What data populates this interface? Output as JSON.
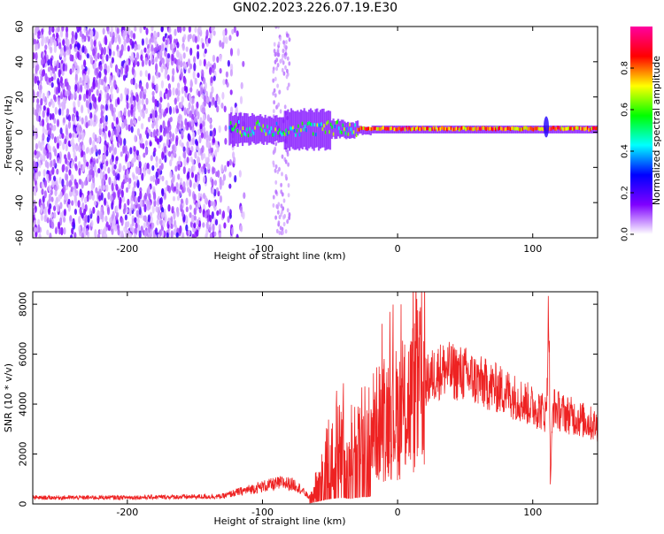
{
  "figure": {
    "title": "GN02.2023.226.07.19.E30"
  },
  "chart_data": [
    {
      "type": "heatmap",
      "title": "GN02.2023.226.07.19.E30",
      "xlabel": "Height of straight line (km)",
      "ylabel": "Frequency (Hz)",
      "xlim": [
        -270,
        148
      ],
      "ylim": [
        -60,
        60
      ],
      "x_ticks": [
        -200,
        -100,
        0,
        100
      ],
      "y_ticks": [
        -60,
        -40,
        -20,
        0,
        20,
        40,
        60
      ],
      "colorbar": {
        "label": "Normalized spectral amplitude",
        "range": [
          0.0,
          1.0
        ],
        "ticks": [
          0.0,
          0.2,
          0.4,
          0.6,
          0.8
        ],
        "colormap": [
          "#ffffff",
          "#7f00ff",
          "#0000ff",
          "#00ffff",
          "#00ff00",
          "#ffff00",
          "#ff0000",
          "#ff00a0"
        ]
      },
      "features": [
        {
          "name": "noise",
          "x_range": [
            -270,
            -125
          ],
          "freq_range": [
            -60,
            60
          ],
          "amplitude": 0.2
        },
        {
          "name": "signal_band",
          "x_range": [
            -125,
            148
          ],
          "center_freq_hz": 1.5,
          "amplitude": 0.95
        },
        {
          "name": "sparse_column",
          "x_range": [
            -92,
            -80
          ],
          "freq_range": [
            -60,
            60
          ],
          "amplitude": 0.1
        }
      ],
      "grid": false
    },
    {
      "type": "line",
      "xlabel": "Height of straight line (km)",
      "ylabel": "SNR (10 * v/v)",
      "xlim": [
        -270,
        148
      ],
      "ylim": [
        0,
        8500
      ],
      "x_ticks": [
        -200,
        -100,
        0,
        100
      ],
      "y_ticks": [
        0,
        2000,
        4000,
        6000,
        8000
      ],
      "color": "#ee2222",
      "series": [
        {
          "x": [
            -270,
            -200,
            -130,
            -120,
            -100,
            -85,
            -75,
            -65,
            -60,
            -55,
            -50,
            -45,
            -40,
            -35,
            -30,
            -25,
            -20,
            -15,
            -10,
            -5,
            0,
            5,
            10,
            15,
            20,
            25,
            30,
            35,
            40,
            50,
            60,
            70,
            80,
            90,
            100,
            105,
            110,
            112,
            113,
            115,
            120,
            130,
            140,
            148
          ],
          "y": [
            250,
            260,
            300,
            450,
            700,
            850,
            750,
            250,
            800,
            1500,
            2100,
            2300,
            2400,
            2200,
            2500,
            2800,
            3000,
            3200,
            3400,
            3700,
            3600,
            3800,
            4200,
            4500,
            4800,
            5100,
            5300,
            5400,
            5300,
            5200,
            4900,
            4700,
            4500,
            4200,
            3900,
            3800,
            3600,
            8300,
            800,
            3900,
            3700,
            3500,
            3300,
            3100
          ]
        }
      ],
      "grid": false
    }
  ]
}
